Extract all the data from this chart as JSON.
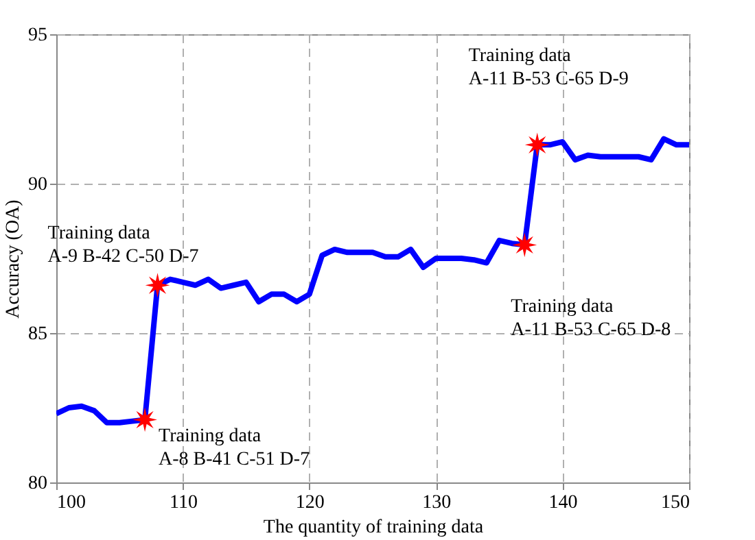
{
  "chart_data": {
    "type": "line",
    "xlabel": "The quantity of training data",
    "ylabel": "Accuracy (OA)",
    "xlim": [
      100,
      150
    ],
    "xticks": [
      100,
      110,
      120,
      130,
      140,
      150
    ],
    "ylim": [
      80,
      95
    ],
    "yticks": [
      80,
      85,
      90,
      95
    ],
    "grid": true,
    "line_style": "solid",
    "marker": "none",
    "series": [
      {
        "color": "#0000ff",
        "x": [
          100,
          101,
          102,
          103,
          104,
          105,
          106,
          107,
          108,
          109,
          110,
          111,
          112,
          113,
          114,
          115,
          116,
          117,
          118,
          119,
          120,
          121,
          122,
          123,
          124,
          125,
          126,
          127,
          128,
          129,
          130,
          131,
          132,
          133,
          134,
          135,
          136,
          137,
          138,
          139,
          140,
          141,
          142,
          143,
          144,
          145,
          146,
          147,
          148,
          149,
          150
        ],
        "values": [
          82.3,
          82.5,
          82.55,
          82.4,
          82.0,
          82.0,
          82.05,
          82.1,
          86.6,
          86.8,
          86.7,
          86.6,
          86.8,
          86.5,
          86.6,
          86.7,
          86.05,
          86.3,
          86.3,
          86.05,
          86.3,
          87.6,
          87.8,
          87.7,
          87.7,
          87.7,
          87.55,
          87.55,
          87.8,
          87.2,
          87.5,
          87.5,
          87.5,
          87.45,
          87.35,
          88.1,
          88.0,
          87.95,
          91.3,
          91.3,
          91.4,
          90.8,
          90.95,
          90.9,
          90.9,
          90.9,
          90.9,
          90.8,
          91.5,
          91.3,
          91.3
        ]
      },
      {
        "type": "scatter",
        "color": "#ff0000",
        "marker": "star",
        "x": [
          107,
          108,
          137,
          138
        ],
        "values": [
          82.1,
          86.6,
          87.95,
          91.3
        ]
      }
    ],
    "annotations": [
      {
        "text": "Training data\nA-8 B-41 C-51 D-7",
        "x": 107,
        "y": 82.1
      },
      {
        "text": "Training data\nA-9 B-42 C-50 D-7",
        "x": 108,
        "y": 86.6
      },
      {
        "text": "Training data\nA-11 B-53 C-65 D-8",
        "x": 137,
        "y": 87.95
      },
      {
        "text": "Training data\nA-11 B-53 C-65 D-9",
        "x": 138,
        "y": 91.3
      }
    ]
  }
}
